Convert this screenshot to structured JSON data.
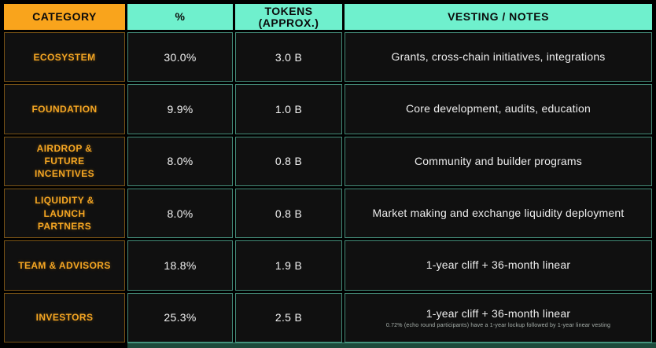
{
  "chart_data": {
    "type": "table",
    "columns": [
      {
        "id": "category",
        "label": "CATEGORY"
      },
      {
        "id": "percent",
        "label": "%"
      },
      {
        "id": "tokens",
        "label": "TOKENS",
        "label_line2": "(APPROX.)"
      },
      {
        "id": "vesting",
        "label": "VESTING / NOTES"
      }
    ],
    "rows": [
      {
        "category": "ECOSYSTEM",
        "percent": "30.0%",
        "tokens": "3.0 B",
        "vesting": "Grants, cross-chain initiatives, integrations"
      },
      {
        "category": "FOUNDATION",
        "percent": "9.9%",
        "tokens": "1.0 B",
        "vesting": "Core development, audits, education"
      },
      {
        "category": "AIRDROP & FUTURE INCENTIVES",
        "percent": "8.0%",
        "tokens": "0.8 B",
        "vesting": "Community and builder programs"
      },
      {
        "category": "LIQUIDITY & LAUNCH PARTNERS",
        "percent": "8.0%",
        "tokens": "0.8 B",
        "vesting": "Market making and exchange liquidity deployment"
      },
      {
        "category": "TEAM & ADVISORS",
        "percent": "18.8%",
        "tokens": "1.9 B",
        "vesting": "1-year cliff + 36-month linear"
      },
      {
        "category": "INVESTORS",
        "percent": "25.3%",
        "tokens": "2.5 B",
        "vesting": "1-year cliff + 36-month linear",
        "vesting_subnote": "0.72% (echo round participants) have a 1-year lockup followed by 1-year linear vesting"
      }
    ]
  },
  "colors": {
    "accent_orange": "#f9a41c",
    "accent_teal": "#6ff0cd",
    "category_text": "#f5a623",
    "cell_background": "#101010",
    "page_background": "#000000",
    "bottom_bar": "#1d4a3b"
  }
}
